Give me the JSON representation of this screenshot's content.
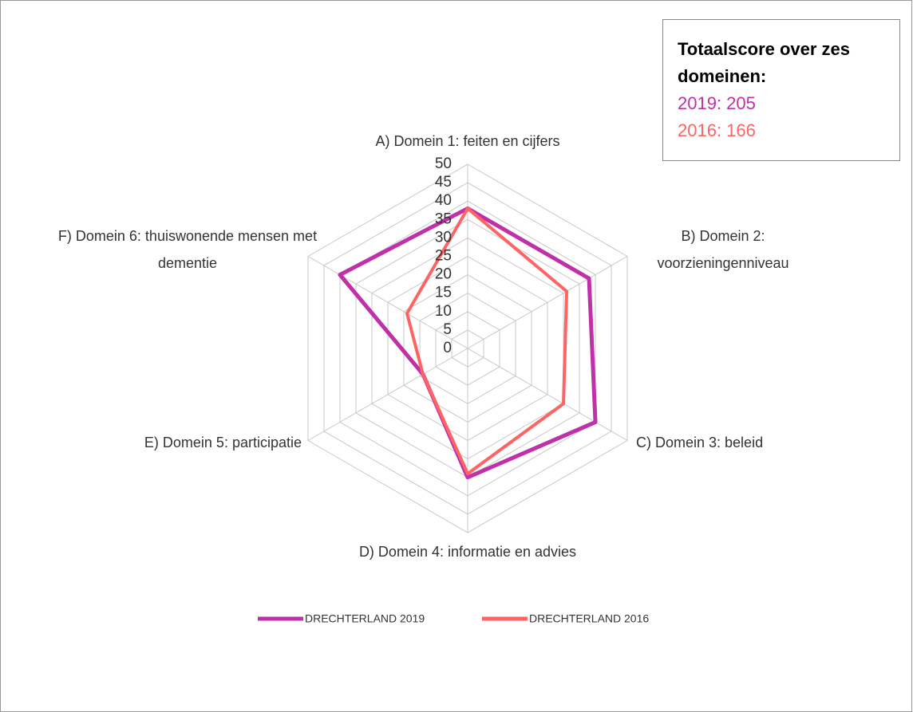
{
  "chart_data": {
    "type": "radar",
    "categories": [
      "A) Domein 1: feiten en cijfers",
      "B) Domein 2: voorzieningenniveau",
      "C) Domein 3: beleid",
      "D) Domein 4: informatie en advies",
      "E) Domein 5: participatie",
      "F) Domein 6: thuiswonende mensen met dementie"
    ],
    "series": [
      {
        "name": "DRECHTERLAND 2019",
        "color": "#c030a8",
        "values": [
          38,
          38,
          40,
          35,
          14,
          40
        ]
      },
      {
        "name": "DRECHTERLAND 2016",
        "color": "#ff6464",
        "values": [
          38,
          31,
          30,
          34,
          14,
          19
        ]
      }
    ],
    "rlim": [
      0,
      50
    ],
    "rticks": [
      0,
      5,
      10,
      15,
      20,
      25,
      30,
      35,
      40,
      45,
      50
    ],
    "grid": true,
    "legend": "bottom",
    "annotation": {
      "title": "Totaalscore over zes domeinen:",
      "lines": [
        "2019: 205",
        "2016: 166"
      ]
    }
  }
}
